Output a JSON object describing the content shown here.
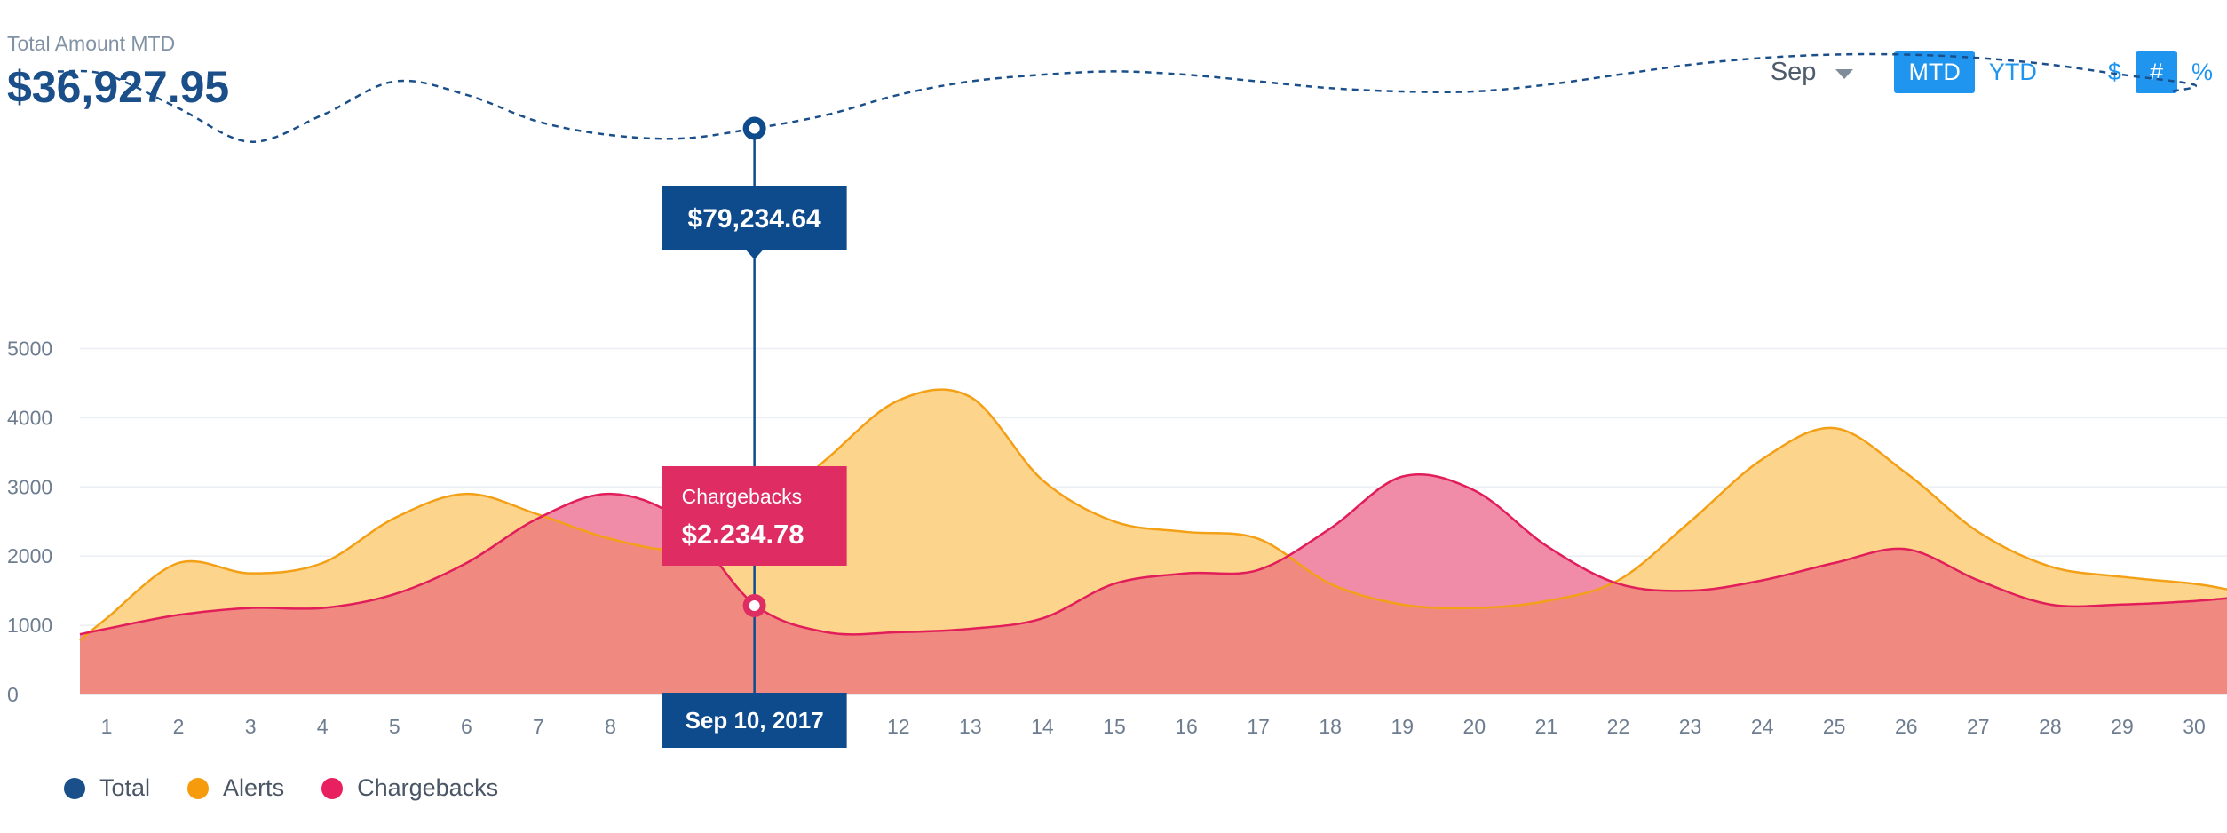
{
  "summary": {
    "label": "Total Amount MTD",
    "value": "$36,927.95"
  },
  "controls": {
    "month": "Sep",
    "period_options": [
      "MTD",
      "YTD"
    ],
    "period_active": "MTD",
    "unit_options": [
      "$",
      "#",
      "%"
    ],
    "unit_active": "#"
  },
  "tooltips": {
    "total_value": "$79,234.64",
    "chargebacks_title": "Chargebacks",
    "chargebacks_value": "$2.234.78",
    "date": "Sep 10, 2017"
  },
  "legend": [
    {
      "label": "Total",
      "color": "#1a4f8a"
    },
    {
      "label": "Alerts",
      "color": "#f59b0c"
    },
    {
      "label": "Chargebacks",
      "color": "#e8205f"
    }
  ],
  "colors": {
    "accent": "#1f95f0",
    "total_line": "#1a4f8a",
    "alerts_stroke": "#f3a017",
    "alerts_fill": "#fdd48c",
    "chargebacks_stroke": "#e11e5a",
    "chargebacks_fill": "#f08ba8",
    "overlap_fill": "#f08a80",
    "tooltip_blue": "#0e4b8c",
    "tooltip_pink": "#df2d63"
  },
  "chart_data": {
    "type": "area",
    "x": [
      1,
      2,
      3,
      4,
      5,
      6,
      7,
      8,
      9,
      10,
      11,
      12,
      13,
      14,
      15,
      16,
      17,
      18,
      19,
      20,
      21,
      22,
      23,
      24,
      25,
      26,
      27,
      28,
      29,
      30
    ],
    "yticks": [
      0,
      1000,
      2000,
      3000,
      4000,
      5000
    ],
    "ylim": [
      0,
      5000
    ],
    "grid": true,
    "legend_position": "bottom-left",
    "highlight_x": 10,
    "series": [
      {
        "name": "Alerts",
        "values": [
          1100,
          1900,
          1750,
          1900,
          2550,
          2900,
          2600,
          2250,
          2100,
          2500,
          3400,
          4250,
          4300,
          3100,
          2500,
          2350,
          2250,
          1600,
          1300,
          1250,
          1350,
          1650,
          2500,
          3400,
          3850,
          3200,
          2350,
          1850,
          1700,
          1600
        ]
      },
      {
        "name": "Chargebacks",
        "values": [
          950,
          1150,
          1250,
          1250,
          1450,
          1900,
          2550,
          2900,
          2500,
          1300,
          900,
          900,
          950,
          1100,
          1600,
          1750,
          1800,
          2400,
          3150,
          2950,
          2150,
          1600,
          1500,
          1650,
          1900,
          2100,
          1650,
          1300,
          1300,
          1350
        ]
      },
      {
        "name": "Total",
        "values": [
          6700,
          6200,
          5700,
          6100,
          6600,
          6400,
          6000,
          5800,
          5750,
          5900,
          6100,
          6400,
          6600,
          6700,
          6750,
          6700,
          6600,
          6500,
          6450,
          6450,
          6550,
          6700,
          6850,
          6950,
          7000,
          7000,
          6950,
          6850,
          6700,
          6550
        ]
      }
    ]
  }
}
